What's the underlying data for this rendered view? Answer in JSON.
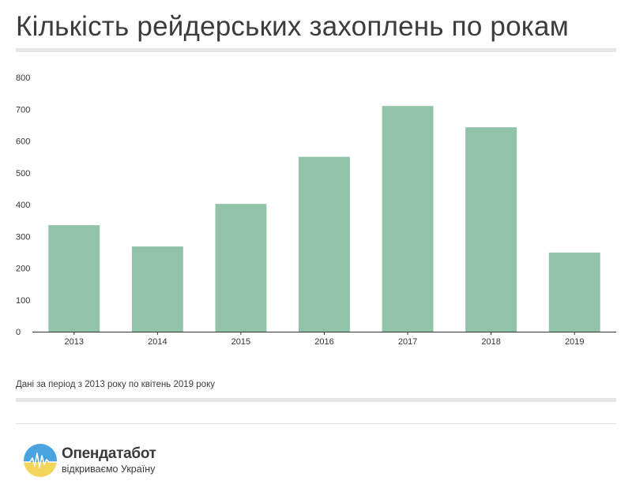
{
  "title": "Кількість рейдерських захоплень по рокам",
  "note": "Дані за період з 2013 року по квітень 2019 року",
  "brand": {
    "name": "Опендатабот",
    "tagline": "відкриваємо Україну",
    "logo_colors": [
      "#4aa3df",
      "#f3d55b"
    ]
  },
  "colors": {
    "bar": "#90c3a8",
    "axis": "#333333"
  },
  "chart_data": {
    "type": "bar",
    "title": "Кількість рейдерських захоплень по рокам",
    "categories": [
      "2013",
      "2014",
      "2015",
      "2016",
      "2017",
      "2018",
      "2019"
    ],
    "values": [
      335,
      268,
      402,
      550,
      710,
      643,
      249
    ],
    "ylim": [
      0,
      800
    ],
    "yticks": [
      0,
      100,
      200,
      300,
      400,
      500,
      600,
      700,
      800
    ],
    "grid": false,
    "legend": "none"
  }
}
